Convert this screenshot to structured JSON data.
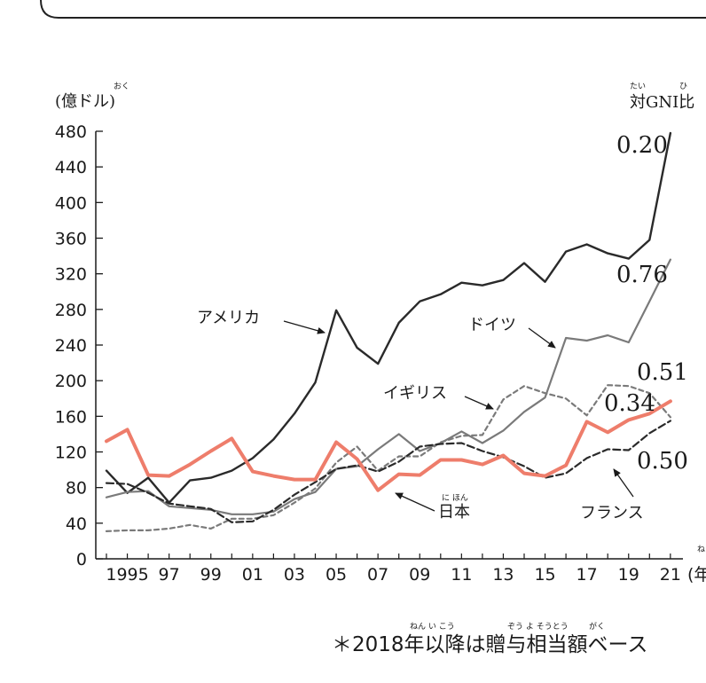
{
  "chart_data": {
    "type": "line",
    "y_unit": "(億ドル)",
    "y_unit_ruby": "おく",
    "right_label": "対GNI比",
    "right_label_ruby_1": "たい",
    "right_label_ruby_2": "ひ",
    "x_unit": "(年",
    "x_unit_ruby": "ね",
    "ylim": [
      0,
      480
    ],
    "yticks": [
      0,
      40,
      80,
      120,
      160,
      200,
      240,
      280,
      320,
      360,
      400,
      440,
      480
    ],
    "x": [
      1994,
      1995,
      1996,
      1997,
      1998,
      1999,
      2000,
      2001,
      2002,
      2003,
      2004,
      2005,
      2006,
      2007,
      2008,
      2009,
      2010,
      2011,
      2012,
      2013,
      2014,
      2015,
      2016,
      2017,
      2018,
      2019,
      2020,
      2021
    ],
    "xticks": [
      {
        "x": 1995,
        "label": "1995"
      },
      {
        "x": 1997,
        "label": "97"
      },
      {
        "x": 1999,
        "label": "99"
      },
      {
        "x": 2001,
        "label": "01"
      },
      {
        "x": 2003,
        "label": "03"
      },
      {
        "x": 2005,
        "label": "05"
      },
      {
        "x": 2007,
        "label": "07"
      },
      {
        "x": 2009,
        "label": "09"
      },
      {
        "x": 2011,
        "label": "11"
      },
      {
        "x": 2013,
        "label": "13"
      },
      {
        "x": 2015,
        "label": "15"
      },
      {
        "x": 2017,
        "label": "17"
      },
      {
        "x": 2019,
        "label": "19"
      },
      {
        "x": 2021,
        "label": "21"
      }
    ],
    "series": [
      {
        "name": "アメリカ",
        "ratio": "0.20",
        "color": "#2a2a2a",
        "dash": "none",
        "width": 2.4,
        "values": [
          99,
          74,
          91,
          63,
          88,
          91,
          99,
          113,
          134,
          163,
          198,
          279,
          237,
          219,
          265,
          289,
          297,
          310,
          307,
          313,
          332,
          311,
          345,
          353,
          343,
          337,
          358,
          478
        ]
      },
      {
        "name": "ドイツ",
        "ratio": "0.76",
        "color": "#7a7a7a",
        "dash": "none",
        "width": 2.2,
        "values": [
          69,
          75,
          76,
          59,
          57,
          55,
          50,
          50,
          53,
          67,
          75,
          101,
          104,
          123,
          140,
          121,
          130,
          143,
          130,
          144,
          165,
          181,
          248,
          245,
          251,
          243,
          289,
          336
        ]
      },
      {
        "name": "イギリス",
        "ratio": "0.51",
        "color": "#7a7a7a",
        "dash": "5 4",
        "width": 2.2,
        "values": [
          31,
          32,
          32,
          34,
          38,
          34,
          45,
          45,
          49,
          63,
          79,
          108,
          126,
          99,
          115,
          115,
          131,
          138,
          139,
          179,
          194,
          186,
          180,
          161,
          195,
          194,
          186,
          159
        ]
      },
      {
        "name": "フランス",
        "ratio": "0.50",
        "color": "#2a2a2a",
        "dash": "8 4",
        "width": 2.2,
        "values": [
          85,
          84,
          74,
          62,
          59,
          56,
          41,
          42,
          55,
          72,
          86,
          101,
          105,
          98,
          109,
          126,
          129,
          130,
          121,
          114,
          104,
          91,
          96,
          113,
          123,
          122,
          141,
          155
        ]
      },
      {
        "name": "日本",
        "ratio": "0.34",
        "color": "#ee7d6b",
        "dash": "none",
        "width": 4,
        "values": [
          132,
          145,
          94,
          93,
          106,
          121,
          135,
          98,
          93,
          89,
          89,
          131,
          112,
          77,
          95,
          94,
          111,
          111,
          106,
          116,
          96,
          93,
          105,
          154,
          142,
          156,
          163,
          177
        ]
      }
    ],
    "annotations": {
      "america": "アメリカ",
      "germany": "ドイツ",
      "uk": "イギリス",
      "japan": "日本",
      "japan_ruby": "に ほん",
      "france": "フランス"
    },
    "footnote": "＊2018年以降は贈与相当額ベース",
    "footnote_ruby_1": "ねん い こう",
    "footnote_ruby_2": "ぞう よ そうとう",
    "footnote_ruby_3": "がく"
  }
}
